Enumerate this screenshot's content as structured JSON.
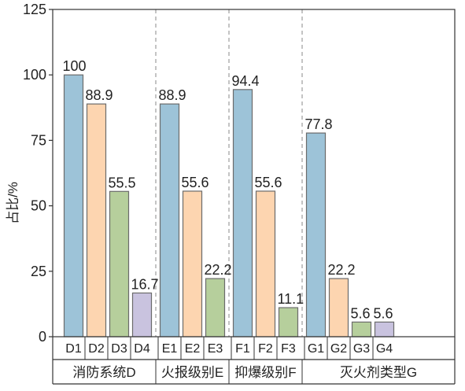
{
  "chart_data": {
    "type": "bar",
    "title": "",
    "xlabel": "",
    "ylabel": "占比/%",
    "ylim": [
      0,
      125
    ],
    "yticks": [
      0,
      25,
      50,
      75,
      100,
      125
    ],
    "grid": false,
    "legend": "none",
    "groups": [
      {
        "name": "消防系统D",
        "categories": [
          "D1",
          "D2",
          "D3",
          "D4"
        ],
        "values": [
          100,
          88.9,
          55.5,
          16.7
        ],
        "value_labels": [
          "100",
          "88.9",
          "55.5",
          "16.7"
        ]
      },
      {
        "name": "火报级别E",
        "categories": [
          "E1",
          "E2",
          "E3"
        ],
        "values": [
          88.9,
          55.6,
          22.2
        ],
        "value_labels": [
          "88.9",
          "55.6",
          "22.2"
        ]
      },
      {
        "name": "抑爆级别F",
        "categories": [
          "F1",
          "F2",
          "F3"
        ],
        "values": [
          94.4,
          55.6,
          11.1
        ],
        "value_labels": [
          "94.4",
          "55.6",
          "11.1"
        ]
      },
      {
        "name": "灭火剂类型G",
        "categories": [
          "G1",
          "G2",
          "G3",
          "G4"
        ],
        "values": [
          77.8,
          22.2,
          5.6,
          5.6
        ],
        "value_labels": [
          "77.8",
          "22.2",
          "5.6",
          "5.6"
        ]
      }
    ],
    "bar_colors": [
      "#9dc3d8",
      "#fdd5b0",
      "#b6cf9c",
      "#c9c3df"
    ],
    "bar_edge_color": "#6b6b6b"
  }
}
